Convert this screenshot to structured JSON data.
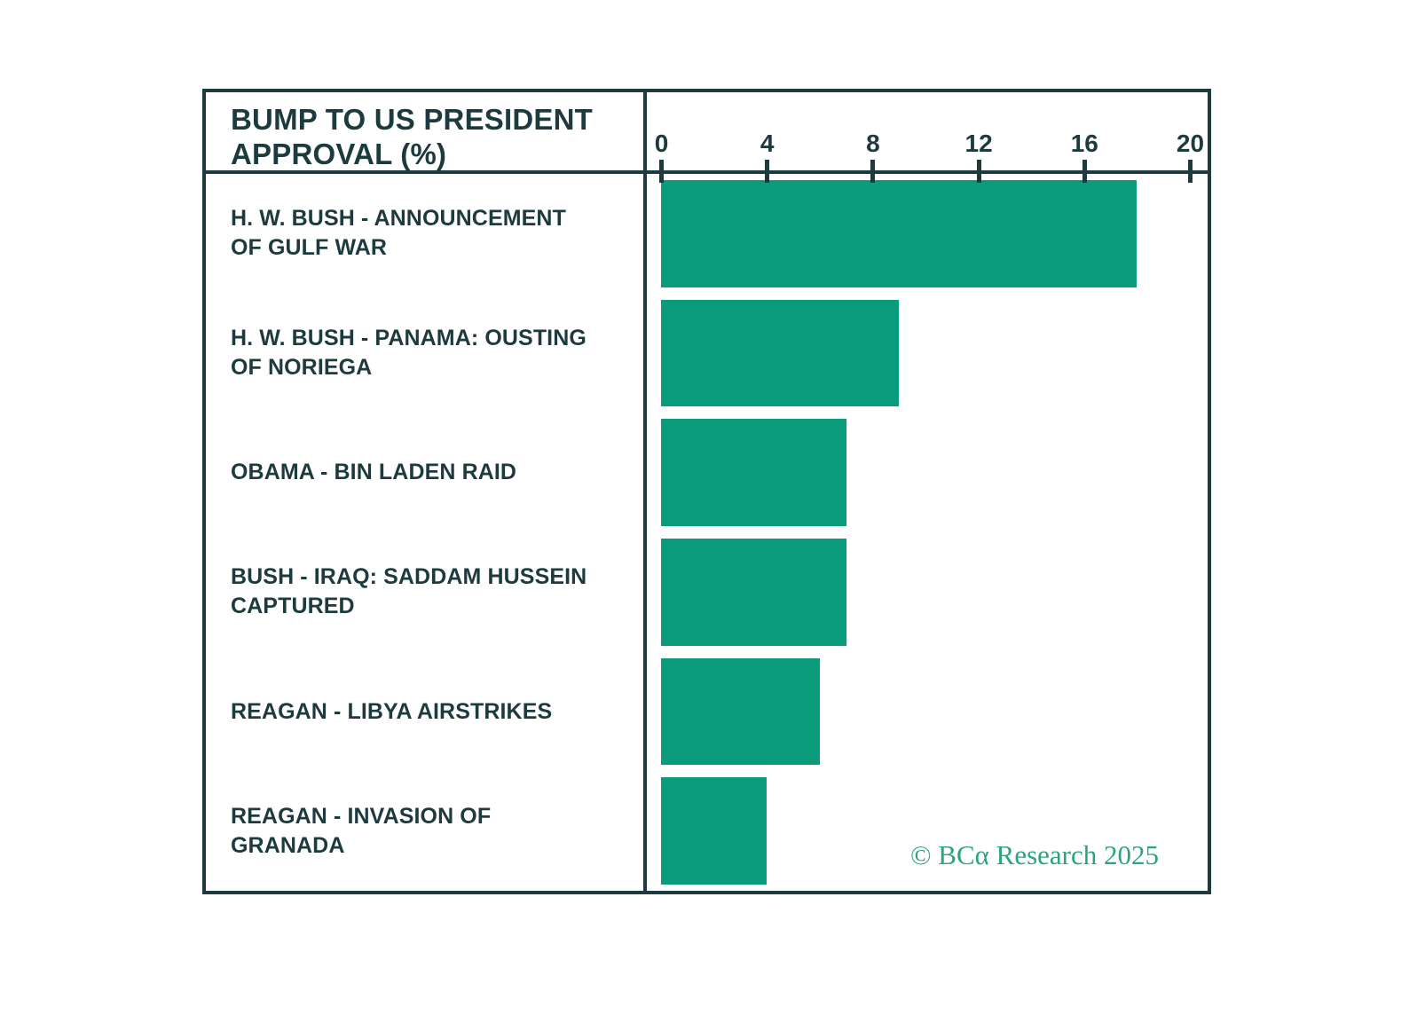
{
  "title": "BUMP TO US PRESIDENT APPROVAL (%)",
  "copyright": "© BCα Research 2025",
  "colors": {
    "bar": "#0a9b7a",
    "frame_and_text": "#1d3b3e",
    "copyright_text": "#2ba47e",
    "background": "#ffffff"
  },
  "chart_data": {
    "type": "bar",
    "orientation": "horizontal",
    "title": "BUMP TO US PRESIDENT APPROVAL (%)",
    "categories": [
      "H. W. BUSH - ANNOUNCEMENT OF GULF WAR",
      "H. W. BUSH - PANAMA: OUSTING OF NORIEGA",
      "OBAMA - BIN LADEN RAID",
      "BUSH - IRAQ: SADDAM HUSSEIN CAPTURED",
      "REAGAN - LIBYA AIRSTRIKES",
      "REAGAN - INVASION OF GRANADA"
    ],
    "values": [
      18,
      9,
      7,
      7,
      6,
      4
    ],
    "xlabel": "",
    "ylabel": "",
    "xlim": [
      0,
      20
    ],
    "xticks": [
      0,
      4,
      8,
      12,
      16,
      20
    ],
    "axis_position": "top",
    "grid": false,
    "legend": "none",
    "annotations": [
      "© BCα Research 2025"
    ]
  }
}
